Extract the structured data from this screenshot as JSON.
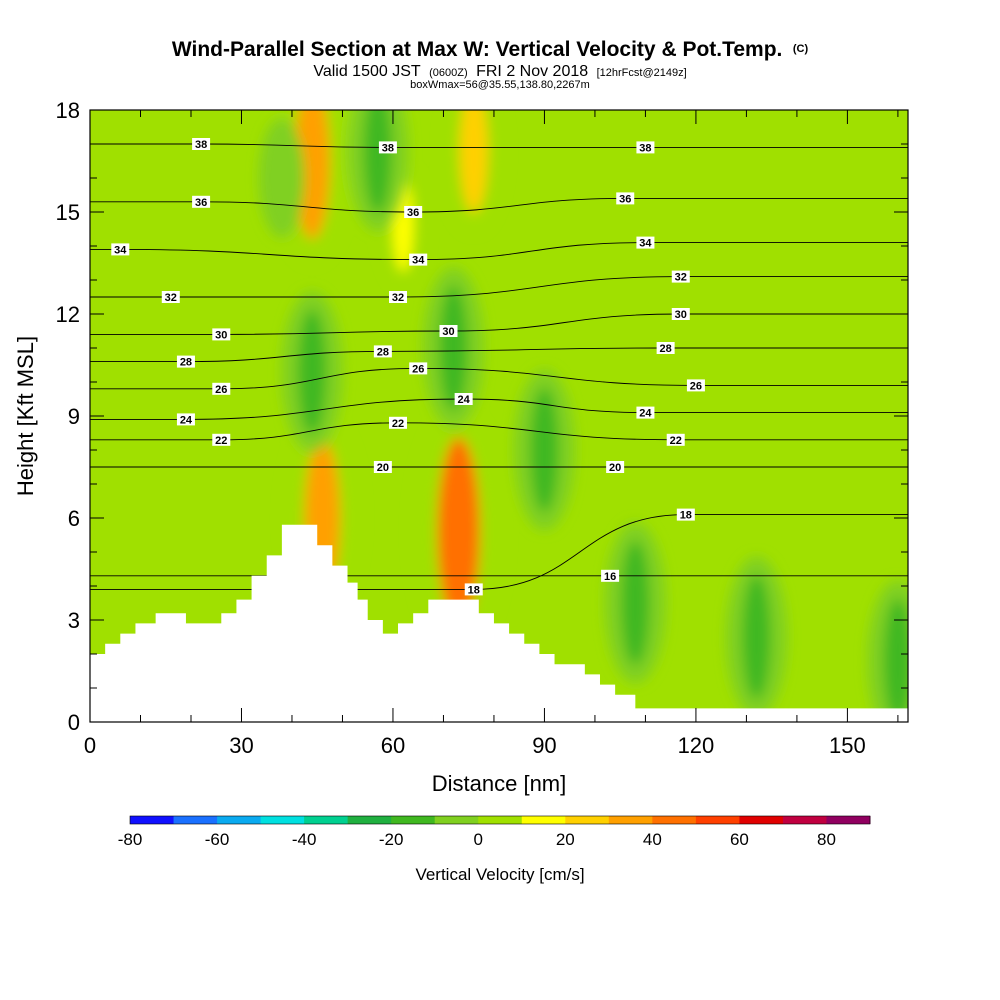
{
  "title": {
    "main": "Wind-Parallel Section at Max W: Vertical Velocity & Pot.Temp.",
    "copyright": "(C)",
    "sub_valid": "Valid 1500 JST",
    "sub_utc": "(0600Z)",
    "sub_date": "FRI 2 Nov 2018",
    "sub_fcst": "[12hrFcst@2149z]",
    "box_info": "boxWmax=56@35.55,138.80,2267m"
  },
  "chart_data": {
    "type": "heatmap",
    "title": "Wind-Parallel Section at Max W: Vertical Velocity & Pot.Temp.",
    "xlabel": "Distance [nm]",
    "ylabel": "Height [Kft MSL]",
    "xlim": [
      0,
      162
    ],
    "ylim": [
      0,
      18
    ],
    "x_ticks": [
      0,
      30,
      60,
      90,
      120,
      150
    ],
    "y_ticks": [
      0,
      3,
      6,
      9,
      12,
      15,
      18
    ],
    "colorbar": {
      "title": "Vertical Velocity [cm/s]",
      "bounds": [
        -80,
        -70,
        -60,
        -50,
        -40,
        -30,
        -20,
        -10,
        0,
        10,
        20,
        30,
        40,
        50,
        60,
        70,
        80,
        90
      ],
      "colors": [
        "#1010ff",
        "#1a70ff",
        "#0aaaf0",
        "#00e0e0",
        "#00d090",
        "#20b040",
        "#40b820",
        "#80d020",
        "#a0e000",
        "#ffff00",
        "#ffd000",
        "#ffa000",
        "#ff7000",
        "#ff4000",
        "#e00000",
        "#c00040",
        "#900060"
      ],
      "tick_labels": [
        "-80",
        "-60",
        "-40",
        "-20",
        "0",
        "20",
        "40",
        "60",
        "80"
      ],
      "tick_values": [
        -80,
        -60,
        -40,
        -20,
        0,
        20,
        40,
        60,
        80
      ]
    },
    "terrain_profile": [
      [
        0,
        2
      ],
      [
        3,
        2
      ],
      [
        3,
        2.3
      ],
      [
        6,
        2.3
      ],
      [
        6,
        2.6
      ],
      [
        9,
        2.6
      ],
      [
        9,
        2.9
      ],
      [
        13,
        2.9
      ],
      [
        13,
        3.2
      ],
      [
        19,
        3.2
      ],
      [
        19,
        2.9
      ],
      [
        26,
        2.9
      ],
      [
        26,
        3.2
      ],
      [
        29,
        3.2
      ],
      [
        29,
        3.6
      ],
      [
        32,
        3.6
      ],
      [
        32,
        4.3
      ],
      [
        35,
        4.3
      ],
      [
        35,
        4.9
      ],
      [
        38,
        4.9
      ],
      [
        38,
        5.8
      ],
      [
        45,
        5.8
      ],
      [
        45,
        5.2
      ],
      [
        48,
        5.2
      ],
      [
        48,
        4.6
      ],
      [
        51,
        4.6
      ],
      [
        51,
        4.1
      ],
      [
        53,
        4.1
      ],
      [
        53,
        3.6
      ],
      [
        55,
        3.6
      ],
      [
        55,
        3.0
      ],
      [
        58,
        3.0
      ],
      [
        58,
        2.6
      ],
      [
        61,
        2.6
      ],
      [
        61,
        2.9
      ],
      [
        64,
        2.9
      ],
      [
        64,
        3.2
      ],
      [
        67,
        3.2
      ],
      [
        67,
        3.6
      ],
      [
        77,
        3.6
      ],
      [
        77,
        3.2
      ],
      [
        80,
        3.2
      ],
      [
        80,
        2.9
      ],
      [
        83,
        2.9
      ],
      [
        83,
        2.6
      ],
      [
        86,
        2.6
      ],
      [
        86,
        2.3
      ],
      [
        89,
        2.3
      ],
      [
        89,
        2.0
      ],
      [
        92,
        2.0
      ],
      [
        92,
        1.7
      ],
      [
        98,
        1.7
      ],
      [
        98,
        1.4
      ],
      [
        101,
        1.4
      ],
      [
        101,
        1.1
      ],
      [
        104,
        1.1
      ],
      [
        104,
        0.8
      ],
      [
        108,
        0.8
      ],
      [
        108,
        0.4
      ],
      [
        162,
        0.4
      ]
    ],
    "updraft_cores": [
      {
        "x": 44,
        "y": 16.5,
        "value": 30
      },
      {
        "x": 46,
        "y": 6.0,
        "value": 30
      },
      {
        "x": 73,
        "y": 5.6,
        "value": 40
      },
      {
        "x": 76,
        "y": 16.8,
        "value": 20
      },
      {
        "x": 62,
        "y": 14.6,
        "value": 10
      }
    ],
    "downdraft_cores": [
      {
        "x": 38,
        "y": 16.0,
        "value": -10
      },
      {
        "x": 57,
        "y": 16.8,
        "value": -20
      },
      {
        "x": 44,
        "y": 10.3,
        "value": -20
      },
      {
        "x": 72,
        "y": 11.0,
        "value": -20
      },
      {
        "x": 90,
        "y": 8.0,
        "value": -20
      },
      {
        "x": 108,
        "y": 3.5,
        "value": -20
      },
      {
        "x": 132,
        "y": 2.5,
        "value": -20
      },
      {
        "x": 160,
        "y": 1.8,
        "value": -20
      }
    ],
    "isentrope_labels": [
      {
        "text": "38",
        "x": 22,
        "y": 17.0
      },
      {
        "text": "38",
        "x": 59,
        "y": 16.9
      },
      {
        "text": "38",
        "x": 110,
        "y": 16.9
      },
      {
        "text": "36",
        "x": 22,
        "y": 15.3
      },
      {
        "text": "36",
        "x": 64,
        "y": 15.0
      },
      {
        "text": "36",
        "x": 106,
        "y": 15.4
      },
      {
        "text": "34",
        "x": 6,
        "y": 13.9
      },
      {
        "text": "34",
        "x": 65,
        "y": 13.6
      },
      {
        "text": "34",
        "x": 110,
        "y": 14.1
      },
      {
        "text": "32",
        "x": 16,
        "y": 12.5
      },
      {
        "text": "32",
        "x": 61,
        "y": 12.5
      },
      {
        "text": "32",
        "x": 117,
        "y": 13.1
      },
      {
        "text": "30",
        "x": 26,
        "y": 11.4
      },
      {
        "text": "30",
        "x": 71,
        "y": 11.5
      },
      {
        "text": "30",
        "x": 117,
        "y": 12.0
      },
      {
        "text": "28",
        "x": 19,
        "y": 10.6
      },
      {
        "text": "28",
        "x": 58,
        "y": 10.9
      },
      {
        "text": "28",
        "x": 114,
        "y": 11.0
      },
      {
        "text": "26",
        "x": 26,
        "y": 9.8
      },
      {
        "text": "26",
        "x": 65,
        "y": 10.4
      },
      {
        "text": "26",
        "x": 120,
        "y": 9.9
      },
      {
        "text": "24",
        "x": 19,
        "y": 8.9
      },
      {
        "text": "24",
        "x": 74,
        "y": 9.5
      },
      {
        "text": "24",
        "x": 110,
        "y": 9.1
      },
      {
        "text": "22",
        "x": 26,
        "y": 8.3
      },
      {
        "text": "22",
        "x": 61,
        "y": 8.8
      },
      {
        "text": "22",
        "x": 116,
        "y": 8.3
      },
      {
        "text": "20",
        "x": 58,
        "y": 7.5
      },
      {
        "text": "20",
        "x": 104,
        "y": 7.5
      },
      {
        "text": "18",
        "x": 76,
        "y": 3.9
      },
      {
        "text": "18",
        "x": 118,
        "y": 6.1
      },
      {
        "text": "16",
        "x": 103,
        "y": 4.3
      }
    ]
  }
}
